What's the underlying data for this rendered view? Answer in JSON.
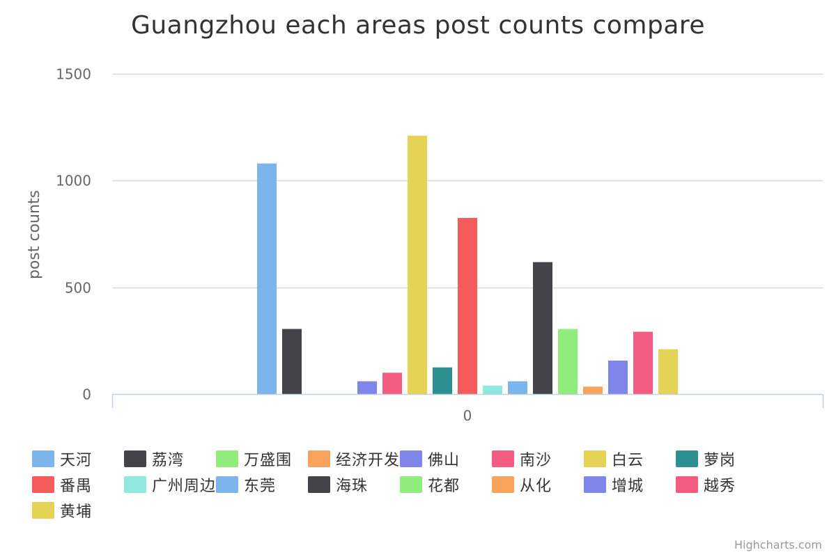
{
  "chart_data": {
    "type": "bar",
    "title": "Guangzhou each areas post counts compare",
    "ylabel": "post counts",
    "xlabel": "",
    "categories": [
      "0"
    ],
    "ylim": [
      0,
      1500
    ],
    "y_ticks": [
      "0",
      "500",
      "1000",
      "1500"
    ],
    "grid": true,
    "legend_position": "bottom",
    "series": [
      {
        "name": "天河",
        "color": "#7cb5ec",
        "values": [
          1080
        ]
      },
      {
        "name": "荔湾",
        "color": "#434348",
        "values": [
          305
        ]
      },
      {
        "name": "万盛围",
        "color": "#90ed7d",
        "values": [
          0
        ]
      },
      {
        "name": "经济开发区",
        "color": "#f7a35c",
        "values": [
          0
        ]
      },
      {
        "name": "佛山",
        "color": "#8085e9",
        "values": [
          60
        ]
      },
      {
        "name": "南沙",
        "color": "#f15c80",
        "values": [
          100
        ]
      },
      {
        "name": "白云",
        "color": "#e4d354",
        "values": [
          1210
        ]
      },
      {
        "name": "萝岗",
        "color": "#2b908f",
        "values": [
          125
        ]
      },
      {
        "name": "番禺",
        "color": "#f45b5b",
        "values": [
          825
        ]
      },
      {
        "name": "广州周边",
        "color": "#91e8e1",
        "values": [
          40
        ]
      },
      {
        "name": "东莞",
        "color": "#7cb5ec",
        "values": [
          60
        ]
      },
      {
        "name": "海珠",
        "color": "#434348",
        "values": [
          618
        ]
      },
      {
        "name": "花都",
        "color": "#90ed7d",
        "values": [
          305
        ]
      },
      {
        "name": "从化",
        "color": "#f7a35c",
        "values": [
          35
        ]
      },
      {
        "name": "增城",
        "color": "#8085e9",
        "values": [
          157
        ]
      },
      {
        "name": "越秀",
        "color": "#f15c80",
        "values": [
          292
        ]
      },
      {
        "name": "黄埔",
        "color": "#e4d354",
        "values": [
          210
        ]
      }
    ]
  },
  "credits": "Highcharts.com"
}
